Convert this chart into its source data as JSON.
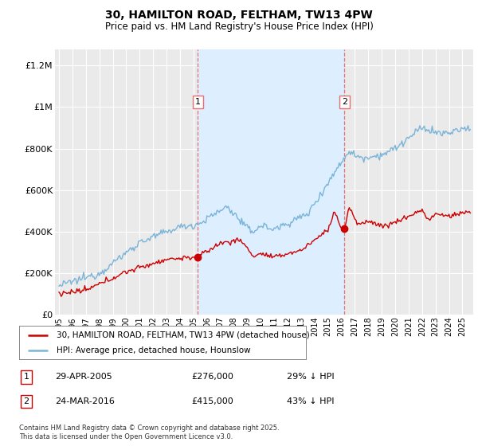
{
  "title": "30, HAMILTON ROAD, FELTHAM, TW13 4PW",
  "subtitle": "Price paid vs. HM Land Registry's House Price Index (HPI)",
  "ylabel_ticks": [
    "£0",
    "£200K",
    "£400K",
    "£600K",
    "£800K",
    "£1M",
    "£1.2M"
  ],
  "ytick_values": [
    0,
    200000,
    400000,
    600000,
    800000,
    1000000,
    1200000
  ],
  "ylim": [
    0,
    1280000
  ],
  "xlim_start": 1994.7,
  "xlim_end": 2025.8,
  "hpi_color": "#7ab4d8",
  "price_color": "#cc0000",
  "marker1_date": 2005.32,
  "marker2_date": 2016.23,
  "marker1_price": 276000,
  "marker2_price": 415000,
  "legend_label1": "30, HAMILTON ROAD, FELTHAM, TW13 4PW (detached house)",
  "legend_label2": "HPI: Average price, detached house, Hounslow",
  "annotation1_label": "29-APR-2005",
  "annotation1_price": "£276,000",
  "annotation1_pct": "29% ↓ HPI",
  "annotation2_label": "24-MAR-2016",
  "annotation2_price": "£415,000",
  "annotation2_pct": "43% ↓ HPI",
  "footer": "Contains HM Land Registry data © Crown copyright and database right 2025.\nThis data is licensed under the Open Government Licence v3.0.",
  "background_color": "#ffffff",
  "plot_bg_color": "#eaeaea",
  "grid_color": "#ffffff",
  "vline_color": "#e87070",
  "span_color": "#ddeeff"
}
